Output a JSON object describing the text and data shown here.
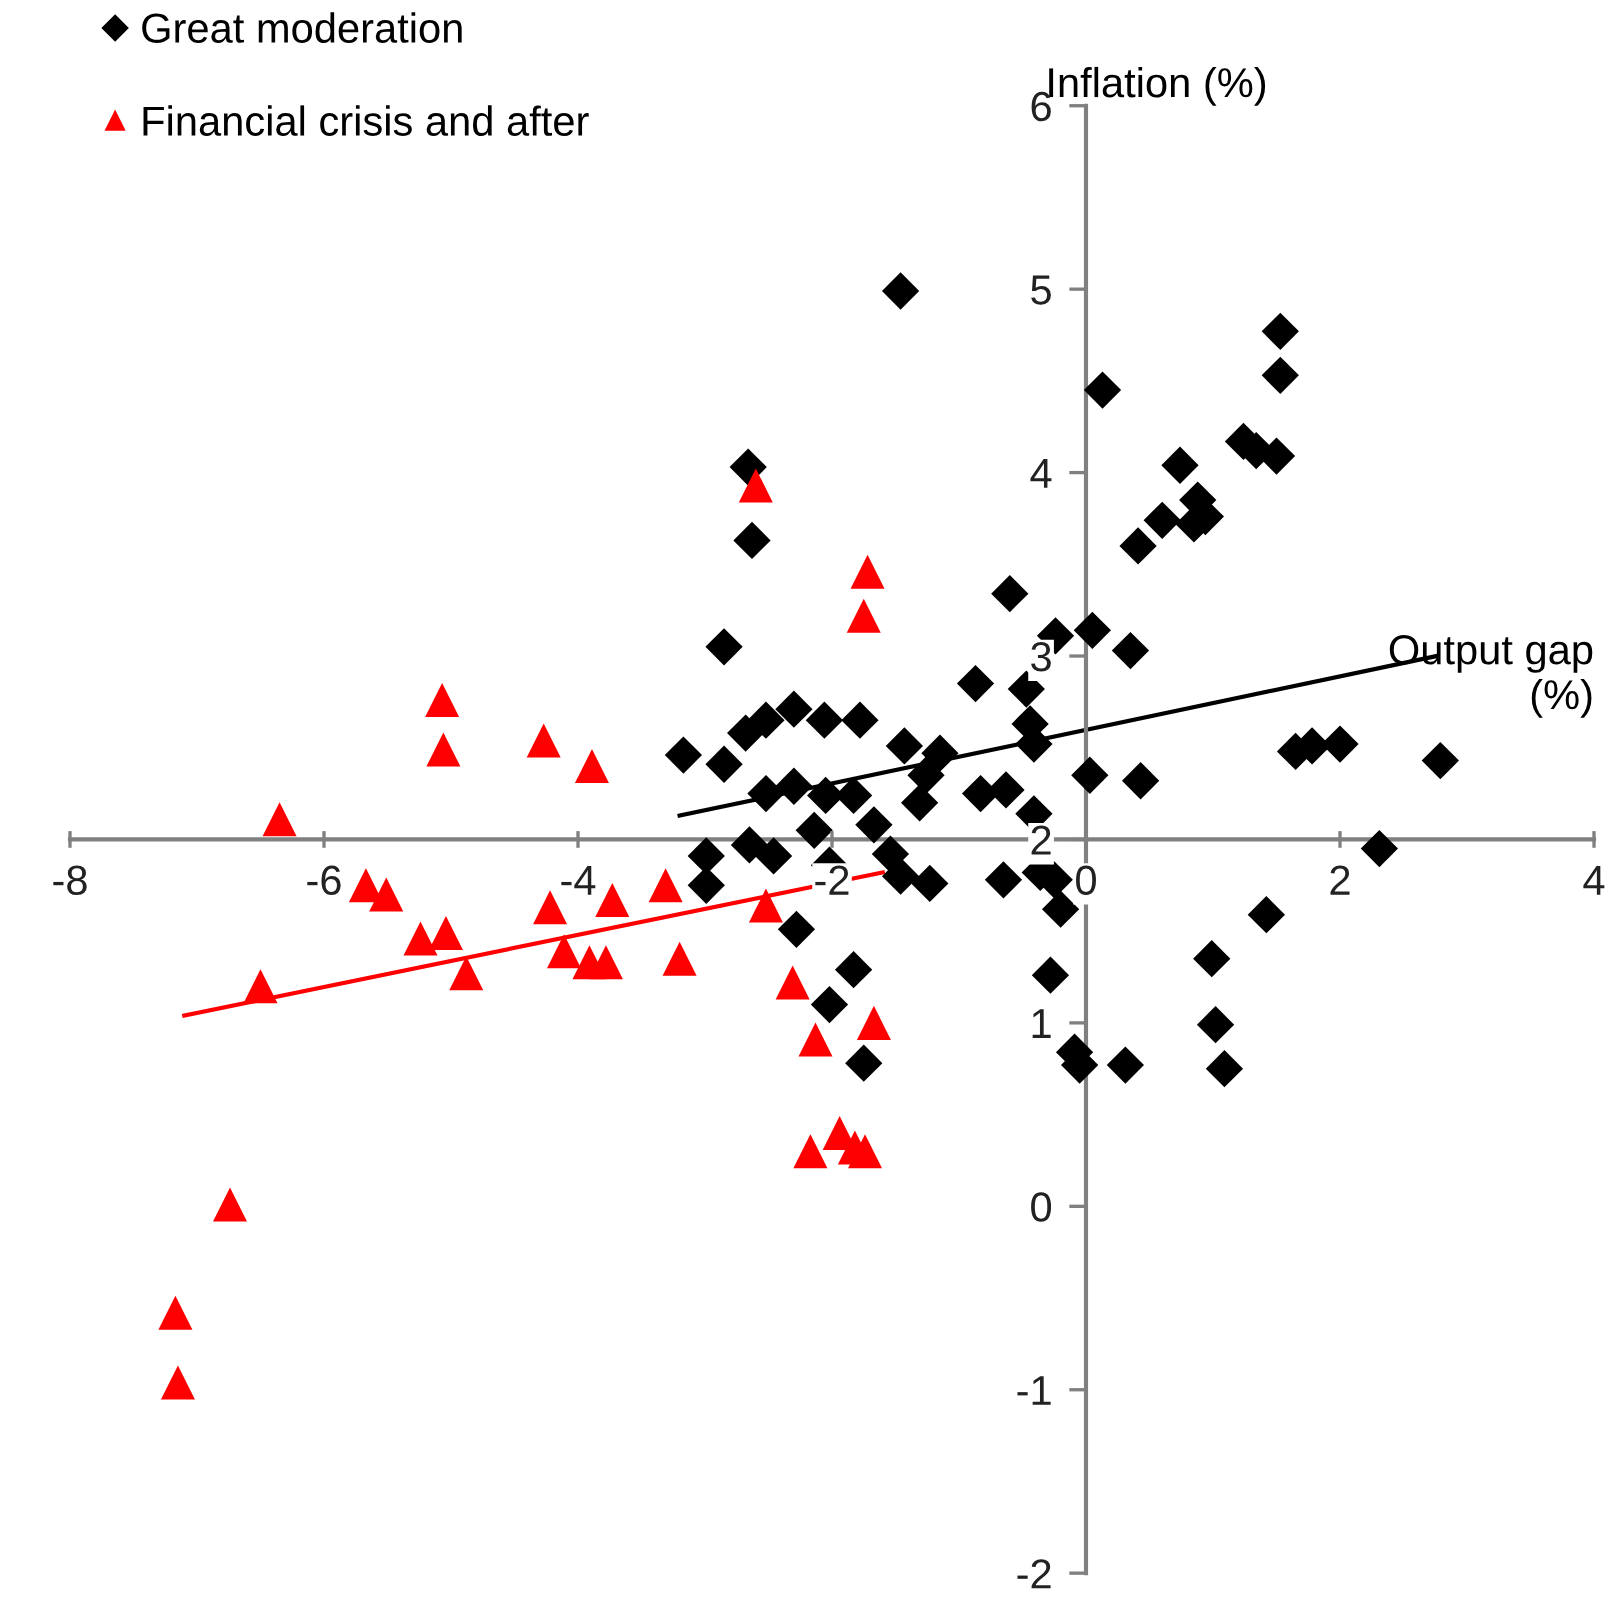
{
  "chart_data": {
    "type": "scatter",
    "xlabel": "Output gap\n(%)",
    "ylabel": "Inflation (%)",
    "xlim": [
      -8,
      4
    ],
    "ylim": [
      -2,
      6
    ],
    "xticks": [
      -8,
      -6,
      -4,
      -2,
      0,
      2,
      4
    ],
    "yticks": [
      -2,
      -1,
      0,
      1,
      2,
      3,
      4,
      5,
      6
    ],
    "grid": false,
    "legend": "top left",
    "series": [
      {
        "name": "Great moderation",
        "marker": "diamond",
        "color": "#000000",
        "x": [
          -1.46,
          0.13,
          -2.66,
          -2.63,
          -2.85,
          -0.6,
          -0.24,
          0.05,
          0.35,
          0.41,
          0.6,
          0.74,
          0.88,
          0.94,
          0.85,
          1.24,
          1.34,
          1.53,
          1.53,
          1.5,
          -0.87,
          -0.47,
          -0.44,
          -0.41,
          0.03,
          0.43,
          1.65,
          1.78,
          2.0,
          2.79,
          2.31,
          1.42,
          0.99,
          1.02,
          1.09,
          0.31,
          -0.09,
          -0.05,
          -0.28,
          -0.25,
          -0.2,
          -0.65,
          -0.36,
          -1.23,
          -2.99,
          -2.99,
          -2.65,
          -2.46,
          -2.14,
          -2.02,
          -1.67,
          -1.54,
          -1.46,
          -2.28,
          -1.83,
          -2.02,
          -1.75,
          -3.17,
          -2.85,
          -2.68,
          -2.52,
          -2.3,
          -2.06,
          -1.78,
          -2.52,
          -2.3,
          -2.05,
          -1.83,
          -1.43,
          -1.15,
          -1.26,
          -1.31,
          -0.83,
          -0.63,
          -0.41
        ],
        "values": [
          4.99,
          4.45,
          4.03,
          3.63,
          3.05,
          3.34,
          3.11,
          3.14,
          3.03,
          3.6,
          3.74,
          4.04,
          3.85,
          3.76,
          3.72,
          4.17,
          4.12,
          4.77,
          4.53,
          4.09,
          2.85,
          2.82,
          2.63,
          2.52,
          2.35,
          2.32,
          2.48,
          2.51,
          2.52,
          2.43,
          1.95,
          1.59,
          1.35,
          0.99,
          0.75,
          0.77,
          0.84,
          0.77,
          1.26,
          1.78,
          1.62,
          1.78,
          1.82,
          1.76,
          1.91,
          1.75,
          1.97,
          1.91,
          2.05,
          1.86,
          2.08,
          1.92,
          1.8,
          1.51,
          1.29,
          1.1,
          0.78,
          2.46,
          2.41,
          2.58,
          2.65,
          2.71,
          2.65,
          2.65,
          2.25,
          2.29,
          2.24,
          2.24,
          2.51,
          2.47,
          2.35,
          2.2,
          2.25,
          2.27,
          2.14
        ]
      },
      {
        "name": "Financial crisis and after",
        "marker": "triangle",
        "color": "#ff0000",
        "x": [
          -2.6,
          -1.72,
          -1.75,
          -5.07,
          -5.06,
          -4.27,
          -3.89,
          -6.35,
          -5.67,
          -5.51,
          -5.24,
          -5.04,
          -4.88,
          -6.5,
          -4.22,
          -3.73,
          -4.11,
          -3.91,
          -3.78,
          -3.31,
          -3.2,
          -2.52,
          -2.31,
          -2.17,
          -2.13,
          -1.67,
          -2.17,
          -1.94,
          -1.82,
          -1.74,
          -6.74,
          -7.17,
          -7.15
        ],
        "values": [
          3.93,
          3.46,
          3.22,
          2.76,
          2.49,
          2.54,
          2.4,
          2.11,
          1.75,
          1.7,
          1.46,
          1.49,
          1.27,
          1.2,
          1.63,
          1.67,
          1.39,
          1.33,
          1.33,
          1.75,
          1.35,
          1.64,
          1.22,
          null,
          0.91,
          1.0,
          0.3,
          0.4,
          0.32,
          0.3,
          0.01,
          -0.58,
          -0.96
        ]
      },
      {
        "type": "line",
        "color": "#000000",
        "x": [
          -3.2,
          2.76
        ],
        "values": [
          2.13,
          3.0
        ]
      },
      {
        "type": "line",
        "color": "#ff0000",
        "x": [
          -7.1,
          -1.6
        ],
        "values": [
          1.04,
          1.82
        ]
      }
    ]
  }
}
